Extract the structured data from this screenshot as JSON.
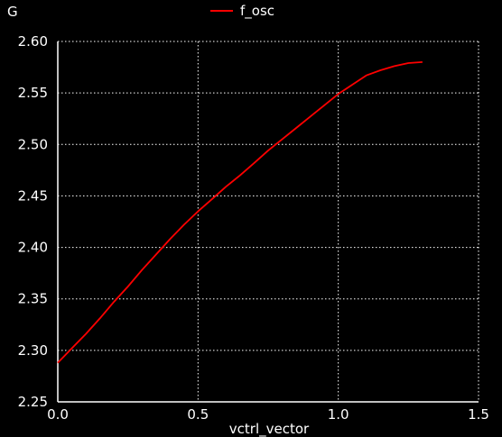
{
  "chart_data": {
    "type": "line",
    "title": "",
    "y_unit": "G",
    "xlabel": "vctrl_vector",
    "ylabel": "",
    "xlim": [
      0.0,
      1.5
    ],
    "ylim": [
      2.25,
      2.6
    ],
    "x_ticks": [
      "0.0",
      "0.5",
      "1.0",
      "1.5"
    ],
    "y_ticks": [
      "2.25",
      "2.30",
      "2.35",
      "2.40",
      "2.45",
      "2.50",
      "2.55",
      "2.60"
    ],
    "grid": true,
    "legend_position": "top-center",
    "colors": {
      "background": "#000000",
      "axes": "#ffffff",
      "grid": "#ffffff",
      "series": "#ff0000"
    },
    "series": [
      {
        "name": "f_osc",
        "x": [
          0.0,
          0.05,
          0.1,
          0.15,
          0.2,
          0.25,
          0.3,
          0.35,
          0.4,
          0.45,
          0.5,
          0.55,
          0.6,
          0.65,
          0.7,
          0.75,
          0.8,
          0.85,
          0.9,
          0.95,
          1.0,
          1.05,
          1.1,
          1.15,
          1.2,
          1.25,
          1.3
        ],
        "y": [
          2.288,
          2.302,
          2.316,
          2.331,
          2.347,
          2.362,
          2.378,
          2.393,
          2.408,
          2.422,
          2.435,
          2.447,
          2.459,
          2.47,
          2.482,
          2.494,
          2.505,
          2.516,
          2.527,
          2.538,
          2.549,
          2.558,
          2.567,
          2.572,
          2.576,
          2.579,
          2.58
        ]
      }
    ]
  }
}
